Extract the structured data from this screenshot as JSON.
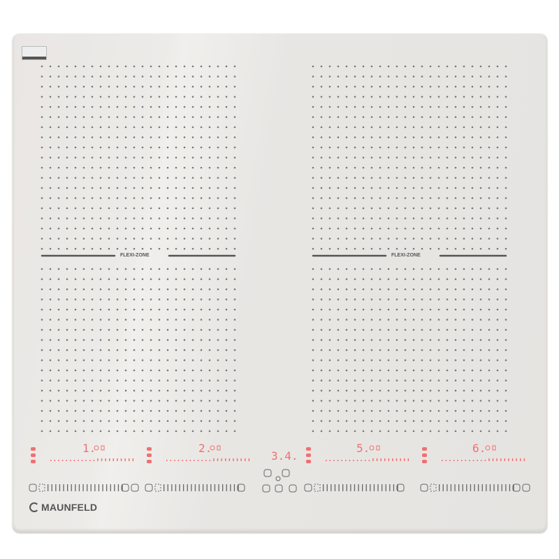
{
  "brand": "MAUNFELD",
  "zones": [
    {
      "label": "FLEXI-ZONE"
    },
    {
      "label": "FLEXI-ZONE"
    }
  ],
  "displays": {
    "zone1": "1.",
    "zone2": "2.",
    "timer": "3.4.",
    "zone5": "5.",
    "zone6": "6."
  },
  "colors": {
    "glass": "#e9e6e3",
    "dots": "#777777",
    "display": "#f07070",
    "controls": "#666666"
  },
  "icons": [
    "minus-icon",
    "plus-icon",
    "clock-icon",
    "play-icon",
    "power-icon",
    "lock-icon",
    "pause-icon",
    "boost-p-icon",
    "bridge-icon"
  ]
}
